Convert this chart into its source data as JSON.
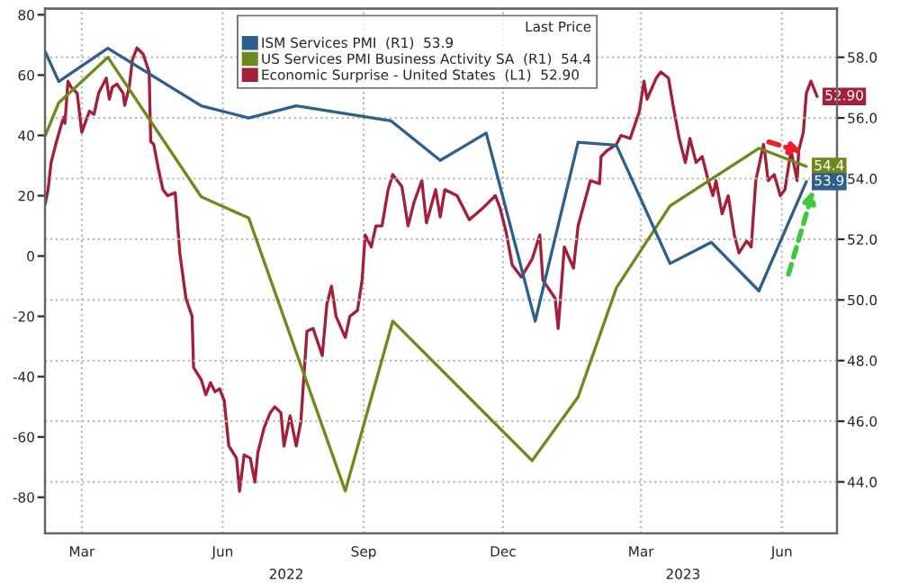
{
  "chart_data": {
    "type": "line",
    "xlim": [
      "2022-02-19",
      "2023-07-21"
    ],
    "xticks": [
      {
        "value": "2022-03-15",
        "label": "Mar"
      },
      {
        "value": "2022-06-15",
        "label": "Jun"
      },
      {
        "value": "2022-09-15",
        "label": "Sep"
      },
      {
        "value": "2022-12-15",
        "label": "Dec"
      },
      {
        "value": "2023-03-15",
        "label": "Mar"
      },
      {
        "value": "2023-06-15",
        "label": "Jun"
      }
    ],
    "annotations": [
      "2022",
      "2023"
    ],
    "ylim": [
      -92,
      82
    ],
    "yticks": [
      -80,
      -60,
      -40,
      -20,
      0,
      20,
      40,
      60,
      80
    ],
    "y2lim": [
      42.3,
      59.6
    ],
    "y2ticks": [
      {
        "value": 44,
        "label": "44.0"
      },
      {
        "value": 46,
        "label": "46.0"
      },
      {
        "value": 48,
        "label": "48.0"
      },
      {
        "value": 50,
        "label": "50.0"
      },
      {
        "value": 52,
        "label": "52.0"
      },
      {
        "value": 54,
        "label": "54.0"
      },
      {
        "value": 56,
        "label": "56.0"
      },
      {
        "value": 58,
        "label": "58.0"
      }
    ],
    "grid": true,
    "legend": "top",
    "legend_title": "Last Price",
    "series": [
      {
        "name": "Economic Surprise - United States  (L1)  52.90",
        "color": "#a3203a",
        "axis": "y",
        "x": [
          "2022-02-19",
          "2022-02-21",
          "2022-02-23",
          "2022-02-26",
          "2022-03-03",
          "2022-03-04",
          "2022-03-06",
          "2022-03-08",
          "2022-03-12",
          "2022-03-15",
          "2022-03-20",
          "2022-03-23",
          "2022-03-26",
          "2022-03-31",
          "2022-04-02",
          "2022-04-04",
          "2022-04-07",
          "2022-04-11",
          "2022-04-12",
          "2022-04-15",
          "2022-04-17",
          "2022-04-20",
          "2022-04-24",
          "2022-04-26",
          "2022-04-28",
          "2022-04-29",
          "2022-05-01",
          "2022-05-04",
          "2022-05-07",
          "2022-05-10",
          "2022-05-15",
          "2022-05-18",
          "2022-05-22",
          "2022-05-26",
          "2022-05-27",
          "2022-06-01",
          "2022-06-04",
          "2022-06-07",
          "2022-06-10",
          "2022-06-13",
          "2022-06-16",
          "2022-06-19",
          "2022-06-24",
          "2022-06-26",
          "2022-06-29",
          "2022-07-03",
          "2022-07-06",
          "2022-07-08",
          "2022-07-12",
          "2022-07-16",
          "2022-07-19",
          "2022-07-23",
          "2022-07-25",
          "2022-07-29",
          "2022-08-02",
          "2022-08-05",
          "2022-08-09",
          "2022-08-13",
          "2022-08-19",
          "2022-08-22",
          "2022-08-25",
          "2022-08-28",
          "2022-09-03",
          "2022-09-06",
          "2022-09-11",
          "2022-09-14",
          "2022-09-16",
          "2022-09-20",
          "2022-09-23",
          "2022-09-27",
          "2022-10-01",
          "2022-10-04",
          "2022-10-10",
          "2022-10-14",
          "2022-10-18",
          "2022-10-23",
          "2022-10-26",
          "2022-11-01",
          "2022-11-04",
          "2022-11-07",
          "2022-11-15",
          "2022-11-23",
          "2022-12-02",
          "2022-12-10",
          "2022-12-13",
          "2022-12-17",
          "2022-12-21",
          "2022-12-27",
          "2023-01-03",
          "2023-01-08",
          "2023-01-10",
          "2023-01-18",
          "2023-01-20",
          "2023-01-24",
          "2023-01-30",
          "2023-02-02",
          "2023-02-10",
          "2023-02-16",
          "2023-02-17",
          "2023-02-21",
          "2023-02-27",
          "2023-03-02",
          "2023-03-08",
          "2023-03-14",
          "2023-03-17",
          "2023-03-19",
          "2023-03-25",
          "2023-03-28",
          "2023-04-02",
          "2023-04-05",
          "2023-04-09",
          "2023-04-13",
          "2023-04-16",
          "2023-04-20",
          "2023-04-24",
          "2023-04-28",
          "2023-05-01",
          "2023-05-03",
          "2023-05-07",
          "2023-05-11",
          "2023-05-15",
          "2023-05-18",
          "2023-05-23",
          "2023-05-26",
          "2023-05-29",
          "2023-06-03",
          "2023-06-04",
          "2023-06-06",
          "2023-06-10",
          "2023-06-14",
          "2023-06-17",
          "2023-06-21",
          "2023-06-25",
          "2023-06-26",
          "2023-06-29",
          "2023-07-01",
          "2023-07-04",
          "2023-07-08"
        ],
        "values": [
          17,
          22,
          31,
          37,
          46,
          44,
          58,
          56,
          54,
          41,
          48,
          47,
          54,
          59,
          52,
          56,
          57,
          54,
          50,
          56,
          65,
          69,
          67,
          64,
          61,
          38,
          37,
          29,
          22,
          20,
          21,
          1,
          -14,
          -20,
          -37,
          -41,
          -46,
          -42,
          -45,
          -44,
          -48,
          -63,
          -67,
          -78,
          -66,
          -67,
          -75,
          -65,
          -57,
          -52,
          -50,
          -52,
          -63,
          -53,
          -63,
          -55,
          -25,
          -24,
          -33,
          -16,
          -10,
          -20,
          -27,
          -20,
          -18,
          -8,
          7,
          3,
          10,
          10,
          22,
          27,
          23,
          10,
          18,
          25,
          11,
          22,
          13,
          22,
          20,
          12,
          16,
          20,
          16,
          8,
          -3,
          -7,
          -1,
          7,
          -8,
          -14,
          -24,
          3,
          -4,
          10,
          25,
          24,
          33,
          35,
          37,
          40,
          39,
          48,
          58,
          52,
          59,
          61,
          59,
          50,
          39,
          31,
          39,
          31,
          33,
          25,
          20,
          25,
          14,
          20,
          7,
          1,
          5,
          3,
          25,
          37,
          34,
          25,
          27,
          20,
          22,
          35,
          25,
          35,
          41,
          54,
          58,
          52.9
        ],
        "value_labels": [
          null,
          null,
          null,
          null,
          null,
          null,
          null,
          null,
          null,
          null,
          null,
          null,
          null,
          null,
          null,
          null,
          null,
          null,
          null,
          null,
          null,
          null,
          null,
          null,
          null,
          null,
          null,
          null,
          null,
          null,
          null,
          null,
          null,
          null,
          null,
          null,
          null,
          null,
          null,
          null,
          null,
          null,
          null,
          null,
          null,
          null,
          null,
          null,
          null,
          null,
          null,
          null,
          null,
          null,
          null,
          null,
          null,
          null,
          null,
          null,
          null,
          null,
          null,
          null,
          null,
          null,
          null,
          null,
          null,
          null,
          null,
          null,
          null,
          null,
          null,
          null,
          null,
          null,
          null,
          null,
          null,
          null,
          null,
          null,
          null,
          null,
          null,
          null,
          null,
          null,
          null,
          null,
          null,
          null,
          null,
          null,
          null,
          null,
          null,
          null,
          null,
          null,
          null,
          null,
          null,
          null,
          null,
          null,
          null,
          null,
          null,
          null,
          null,
          null,
          null,
          null,
          null,
          null,
          null,
          null,
          null,
          null,
          null,
          null,
          null,
          null,
          null,
          null,
          null,
          null,
          null,
          null,
          null,
          null,
          null,
          null,
          null,
          "52.90"
        ]
      },
      {
        "name": "US Services PMI Business Activity SA  (R1)  54.4",
        "color": "#6e8a1c",
        "axis": "y2",
        "x": [
          "2022-02-19",
          "2022-02-28",
          "2022-04-01",
          "2022-06-01",
          "2022-07-02",
          "2022-09-03",
          "2022-10-04",
          "2023-01-03",
          "2023-02-02",
          "2023-02-27",
          "2023-04-03",
          "2023-05-31",
          "2023-07-01"
        ],
        "values": [
          55.4,
          56.5,
          58.0,
          53.4,
          52.7,
          43.7,
          49.3,
          44.7,
          46.8,
          50.4,
          53.1,
          55.0,
          54.4
        ],
        "value_labels": [
          null,
          null,
          null,
          null,
          null,
          null,
          null,
          null,
          null,
          null,
          null,
          null,
          "54.4"
        ]
      },
      {
        "name": "ISM Services PMI  (R1)  53.9",
        "color": "#2f5f8a",
        "axis": "y2",
        "x": [
          "2022-02-19",
          "2022-02-28",
          "2022-04-01",
          "2022-06-01",
          "2022-07-02",
          "2022-08-02",
          "2022-10-03",
          "2022-11-04",
          "2022-12-04",
          "2023-01-05",
          "2023-02-02",
          "2023-02-27",
          "2023-04-03",
          "2023-04-30",
          "2023-05-31",
          "2023-07-01"
        ],
        "values": [
          58.2,
          57.2,
          58.3,
          56.4,
          56.0,
          56.4,
          55.9,
          54.6,
          55.5,
          49.3,
          55.2,
          55.1,
          51.2,
          51.9,
          50.3,
          53.9
        ],
        "value_labels": [
          null,
          null,
          null,
          null,
          null,
          null,
          null,
          null,
          null,
          null,
          null,
          null,
          null,
          null,
          null,
          "53.9"
        ]
      }
    ]
  }
}
